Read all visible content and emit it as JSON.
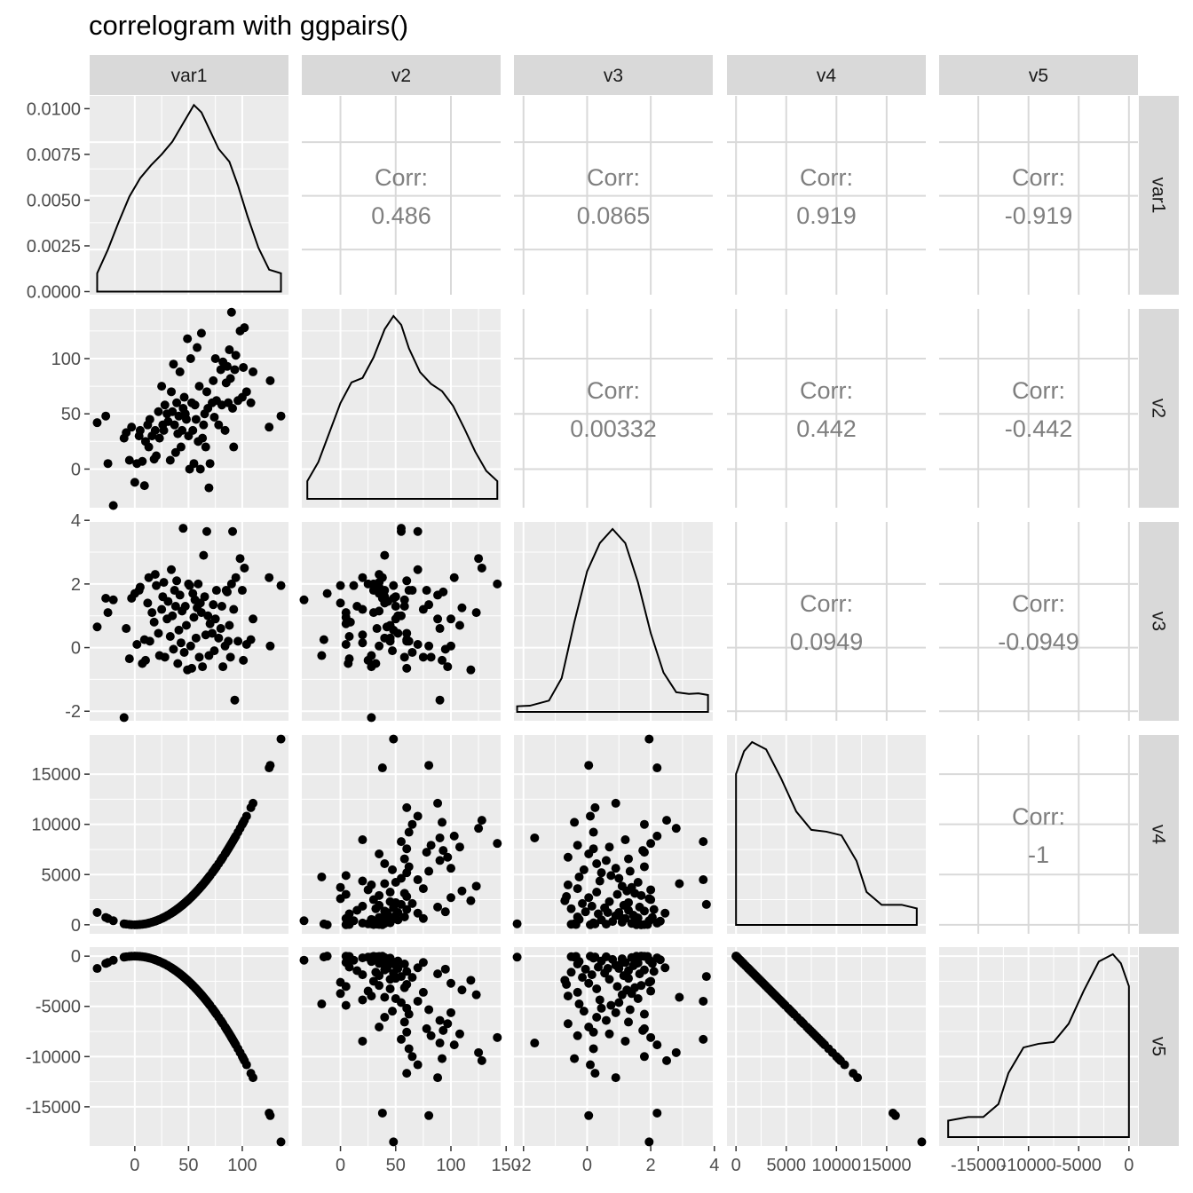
{
  "title": "correlogram with ggpairs()",
  "colors": {
    "panel_bg": "#ebebeb",
    "grid": "#ffffff",
    "strip_bg": "#d9d9d9",
    "corr_grid": "#d9d9d9",
    "corr_text": "#7f7f7f",
    "points": "#000000"
  },
  "chart_data": {
    "type": "scatter",
    "variables": [
      "var1",
      "v2",
      "v3",
      "v4",
      "v5"
    ],
    "axis_ticks": {
      "var1": {
        "lim": [
          -42,
          143
        ],
        "values": [
          0,
          50,
          100
        ],
        "labels": [
          "0",
          "50",
          "100"
        ]
      },
      "v2": {
        "lim": [
          -35,
          145
        ],
        "values": [
          0,
          50,
          100,
          150
        ],
        "labels": [
          "0",
          "50",
          "100",
          "150"
        ]
      },
      "v3": {
        "lim": [
          -2.3,
          3.95
        ],
        "values": [
          -2,
          0,
          2,
          4
        ],
        "labels": [
          "-2",
          "0",
          "2",
          "4"
        ]
      },
      "v4": {
        "lim": [
          -900,
          18900
        ],
        "values": [
          0,
          5000,
          10000,
          15000
        ],
        "labels": [
          "0",
          "5000",
          "10000",
          "15000"
        ]
      },
      "v5": {
        "lim": [
          -18900,
          900
        ],
        "values": [
          -15000,
          -10000,
          -5000,
          0
        ],
        "labels": [
          "-15000",
          "-10000",
          "-5000",
          "0"
        ]
      }
    },
    "density_axis": {
      "lim": [
        -0.00017,
        0.0107
      ],
      "values": [
        0,
        0.0025,
        0.005,
        0.0075,
        0.01
      ],
      "labels": [
        "0.0000",
        "0.0025",
        "0.0050",
        "0.0075",
        "0.0100"
      ]
    },
    "correlations": [
      {
        "row": "var1",
        "col": "v2",
        "label": "Corr:",
        "value": "0.486"
      },
      {
        "row": "var1",
        "col": "v3",
        "label": "Corr:",
        "value": "0.0865"
      },
      {
        "row": "var1",
        "col": "v4",
        "label": "Corr:",
        "value": "0.919"
      },
      {
        "row": "var1",
        "col": "v5",
        "label": "Corr:",
        "value": "-0.919"
      },
      {
        "row": "v2",
        "col": "v3",
        "label": "Corr:",
        "value": "0.00332"
      },
      {
        "row": "v2",
        "col": "v4",
        "label": "Corr:",
        "value": "0.442"
      },
      {
        "row": "v2",
        "col": "v5",
        "label": "Corr:",
        "value": "-0.442"
      },
      {
        "row": "v3",
        "col": "v4",
        "label": "Corr:",
        "value": "0.0949"
      },
      {
        "row": "v3",
        "col": "v5",
        "label": "Corr:",
        "value": "-0.0949"
      },
      {
        "row": "v4",
        "col": "v5",
        "label": "Corr:",
        "value": "-1"
      }
    ],
    "densities": {
      "var1": [
        [
          -35,
          0.001
        ],
        [
          -25,
          0.0023
        ],
        [
          -15,
          0.0038
        ],
        [
          -5,
          0.0052
        ],
        [
          5,
          0.0062
        ],
        [
          15,
          0.0069
        ],
        [
          25,
          0.0075
        ],
        [
          35,
          0.0082
        ],
        [
          45,
          0.0092
        ],
        [
          55,
          0.0102
        ],
        [
          62,
          0.0098
        ],
        [
          70,
          0.0088
        ],
        [
          78,
          0.0078
        ],
        [
          88,
          0.0071
        ],
        [
          96,
          0.0058
        ],
        [
          105,
          0.0041
        ],
        [
          115,
          0.0024
        ],
        [
          125,
          0.0012
        ],
        [
          136,
          0.001
        ]
      ],
      "v2": [
        [
          -30,
          0.0012
        ],
        [
          -20,
          0.0025
        ],
        [
          -10,
          0.0045
        ],
        [
          0,
          0.0065
        ],
        [
          10,
          0.0079
        ],
        [
          20,
          0.0082
        ],
        [
          30,
          0.0096
        ],
        [
          40,
          0.0115
        ],
        [
          48,
          0.0124
        ],
        [
          55,
          0.0118
        ],
        [
          62,
          0.0102
        ],
        [
          72,
          0.0086
        ],
        [
          82,
          0.0078
        ],
        [
          92,
          0.0073
        ],
        [
          102,
          0.0063
        ],
        [
          112,
          0.0048
        ],
        [
          122,
          0.0032
        ],
        [
          132,
          0.0019
        ],
        [
          142,
          0.0012
        ]
      ],
      "v3": [
        [
          -2.2,
          0.01
        ],
        [
          -1.8,
          0.011
        ],
        [
          -1.2,
          0.02
        ],
        [
          -0.8,
          0.06
        ],
        [
          -0.4,
          0.16
        ],
        [
          0,
          0.25
        ],
        [
          0.4,
          0.3
        ],
        [
          0.8,
          0.325
        ],
        [
          1.2,
          0.3
        ],
        [
          1.6,
          0.23
        ],
        [
          2.0,
          0.14
        ],
        [
          2.4,
          0.07
        ],
        [
          2.8,
          0.035
        ],
        [
          3.2,
          0.032
        ],
        [
          3.5,
          0.033
        ],
        [
          3.8,
          0.03
        ]
      ],
      "v4": [
        [
          0,
          8.25e-05
        ],
        [
          800,
          9.5e-05
        ],
        [
          1600,
          0.0001
        ],
        [
          3000,
          9.6e-05
        ],
        [
          4500,
          8e-05
        ],
        [
          6000,
          6.2e-05
        ],
        [
          7500,
          5.2e-05
        ],
        [
          9000,
          5.1e-05
        ],
        [
          10500,
          4.9e-05
        ],
        [
          12000,
          3.5e-05
        ],
        [
          13000,
          1.8e-05
        ],
        [
          14500,
          1.1e-05
        ],
        [
          16500,
          1.1e-05
        ],
        [
          18000,
          9e-06
        ]
      ],
      "v5": [
        [
          -18000,
          9e-06
        ],
        [
          -16000,
          1.1e-05
        ],
        [
          -14500,
          1.1e-05
        ],
        [
          -13000,
          1.8e-05
        ],
        [
          -12000,
          3.5e-05
        ],
        [
          -10500,
          4.9e-05
        ],
        [
          -9000,
          5.1e-05
        ],
        [
          -7500,
          5.2e-05
        ],
        [
          -6000,
          6.2e-05
        ],
        [
          -4500,
          8e-05
        ],
        [
          -3000,
          9.6e-05
        ],
        [
          -1600,
          0.0001
        ],
        [
          -800,
          9.5e-05
        ],
        [
          0,
          8.25e-05
        ]
      ]
    },
    "points": [
      [
        -35,
        42,
        0.65
      ],
      [
        -27,
        48,
        1.55
      ],
      [
        -25,
        5,
        1.1
      ],
      [
        -20,
        -33,
        1.5
      ],
      [
        -10,
        28,
        -2.2
      ],
      [
        -8,
        33,
        0.6
      ],
      [
        -5,
        8,
        -0.35
      ],
      [
        -3,
        38,
        1.55
      ],
      [
        0,
        -12,
        1.7
      ],
      [
        2,
        5,
        0.1
      ],
      [
        4,
        30,
        1.8
      ],
      [
        5,
        35,
        1.9
      ],
      [
        7,
        7,
        -0.5
      ],
      [
        9,
        -15,
        0.25
      ],
      [
        10,
        25,
        -0.4
      ],
      [
        12,
        40,
        1.4
      ],
      [
        13,
        20,
        2.2
      ],
      [
        14,
        45,
        0.2
      ],
      [
        16,
        30,
        1.1
      ],
      [
        18,
        9,
        0.8
      ],
      [
        19,
        35,
        2.3
      ],
      [
        20,
        12,
        1.95
      ],
      [
        22,
        52,
        0.45
      ],
      [
        23,
        28,
        -0.25
      ],
      [
        25,
        75,
        1.2
      ],
      [
        26,
        40,
        1.6
      ],
      [
        27,
        35,
        2.05
      ],
      [
        28,
        58,
        -0.3
      ],
      [
        30,
        50,
        0.9
      ],
      [
        31,
        43,
        1.45
      ],
      [
        33,
        8,
        0.35
      ],
      [
        34,
        70,
        2.45
      ],
      [
        35,
        52,
        1.0
      ],
      [
        36,
        95,
        -0.05
      ],
      [
        37,
        40,
        1.8
      ],
      [
        38,
        15,
        1.3
      ],
      [
        39,
        60,
        2.1
      ],
      [
        40,
        32,
        -0.5
      ],
      [
        41,
        48,
        0.55
      ],
      [
        42,
        88,
        1.65
      ],
      [
        43,
        20,
        0.15
      ],
      [
        44,
        35,
        1.15
      ],
      [
        45,
        55,
        3.75
      ],
      [
        46,
        65,
        -0.15
      ],
      [
        47,
        50,
        1.3
      ],
      [
        48,
        45,
        0.7
      ],
      [
        49,
        118,
        -0.7
      ],
      [
        50,
        30,
        2.0
      ],
      [
        51,
        0,
        1.95
      ],
      [
        52,
        100,
        0.05
      ],
      [
        53,
        60,
        -0.65
      ],
      [
        54,
        35,
        1.7
      ],
      [
        55,
        5,
        0.95
      ],
      [
        56,
        58,
        1.5
      ],
      [
        57,
        45,
        0.3
      ],
      [
        58,
        110,
        1.25
      ],
      [
        59,
        25,
        2.0
      ],
      [
        60,
        75,
        -0.3
      ],
      [
        61,
        0,
        1.4
      ],
      [
        62,
        123,
        1.1
      ],
      [
        63,
        28,
        -0.6
      ],
      [
        64,
        40,
        2.9
      ],
      [
        65,
        50,
        1.6
      ],
      [
        66,
        20,
        0.4
      ],
      [
        67,
        70,
        3.65
      ],
      [
        68,
        55,
        1.0
      ],
      [
        69,
        -17,
        -0.25
      ],
      [
        70,
        5,
        0.75
      ],
      [
        72,
        60,
        0.45
      ],
      [
        73,
        80,
        1.35
      ],
      [
        74,
        47,
        -0.1
      ],
      [
        75,
        100,
        0.9
      ],
      [
        76,
        62,
        1.8
      ],
      [
        78,
        40,
        0.3
      ],
      [
        80,
        90,
        0.6
      ],
      [
        81,
        58,
        1.3
      ],
      [
        82,
        97,
        -0.6
      ],
      [
        84,
        35,
        0.05
      ],
      [
        85,
        78,
        1.8
      ],
      [
        86,
        93,
        1.75
      ],
      [
        87,
        60,
        0.2
      ],
      [
        88,
        108,
        0.7
      ],
      [
        89,
        82,
        -0.3
      ],
      [
        90,
        142,
        2.0
      ],
      [
        91,
        55,
        3.65
      ],
      [
        92,
        20,
        1.2
      ],
      [
        93,
        90,
        -1.65
      ],
      [
        94,
        103,
        2.2
      ],
      [
        96,
        62,
        0.2
      ],
      [
        98,
        125,
        2.8
      ],
      [
        100,
        65,
        1.8
      ],
      [
        101,
        92,
        -0.4
      ],
      [
        102,
        128,
        2.5
      ],
      [
        104,
        70,
        0.1
      ],
      [
        108,
        60,
        0.25
      ],
      [
        110,
        88,
        0.9
      ],
      [
        125,
        38,
        2.2
      ],
      [
        126,
        80,
        0.05
      ],
      [
        136,
        48,
        1.95
      ]
    ]
  }
}
